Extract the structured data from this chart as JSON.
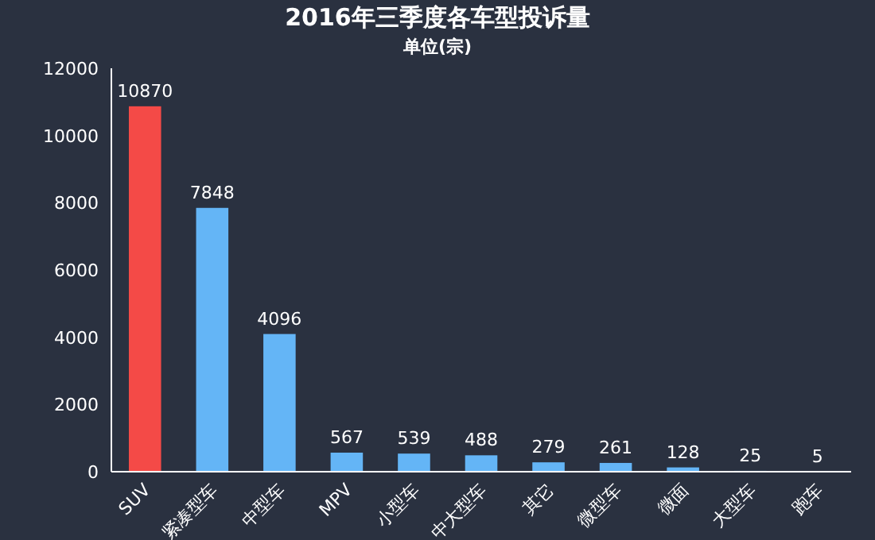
{
  "chart_data": {
    "type": "bar",
    "title": "2016年三季度各车型投诉量",
    "subtitle": "单位(宗)",
    "categories": [
      "SUV",
      "紧凑型车",
      "中型车",
      "MPV",
      "小型车",
      "中大型车",
      "其它",
      "微型车",
      "微面",
      "大型车",
      "跑车"
    ],
    "values": [
      10870,
      7848,
      4096,
      567,
      539,
      488,
      279,
      261,
      128,
      25,
      5
    ],
    "colors": [
      "#f44a47",
      "#64b5f6",
      "#64b5f6",
      "#64b5f6",
      "#64b5f6",
      "#64b5f6",
      "#64b5f6",
      "#64b5f6",
      "#64b5f6",
      "#64b5f6",
      "#64b5f6"
    ],
    "ylim": [
      0,
      12000
    ],
    "yticks": [
      0,
      2000,
      4000,
      6000,
      8000,
      10000,
      12000
    ],
    "grid": false,
    "data_labels": true
  }
}
